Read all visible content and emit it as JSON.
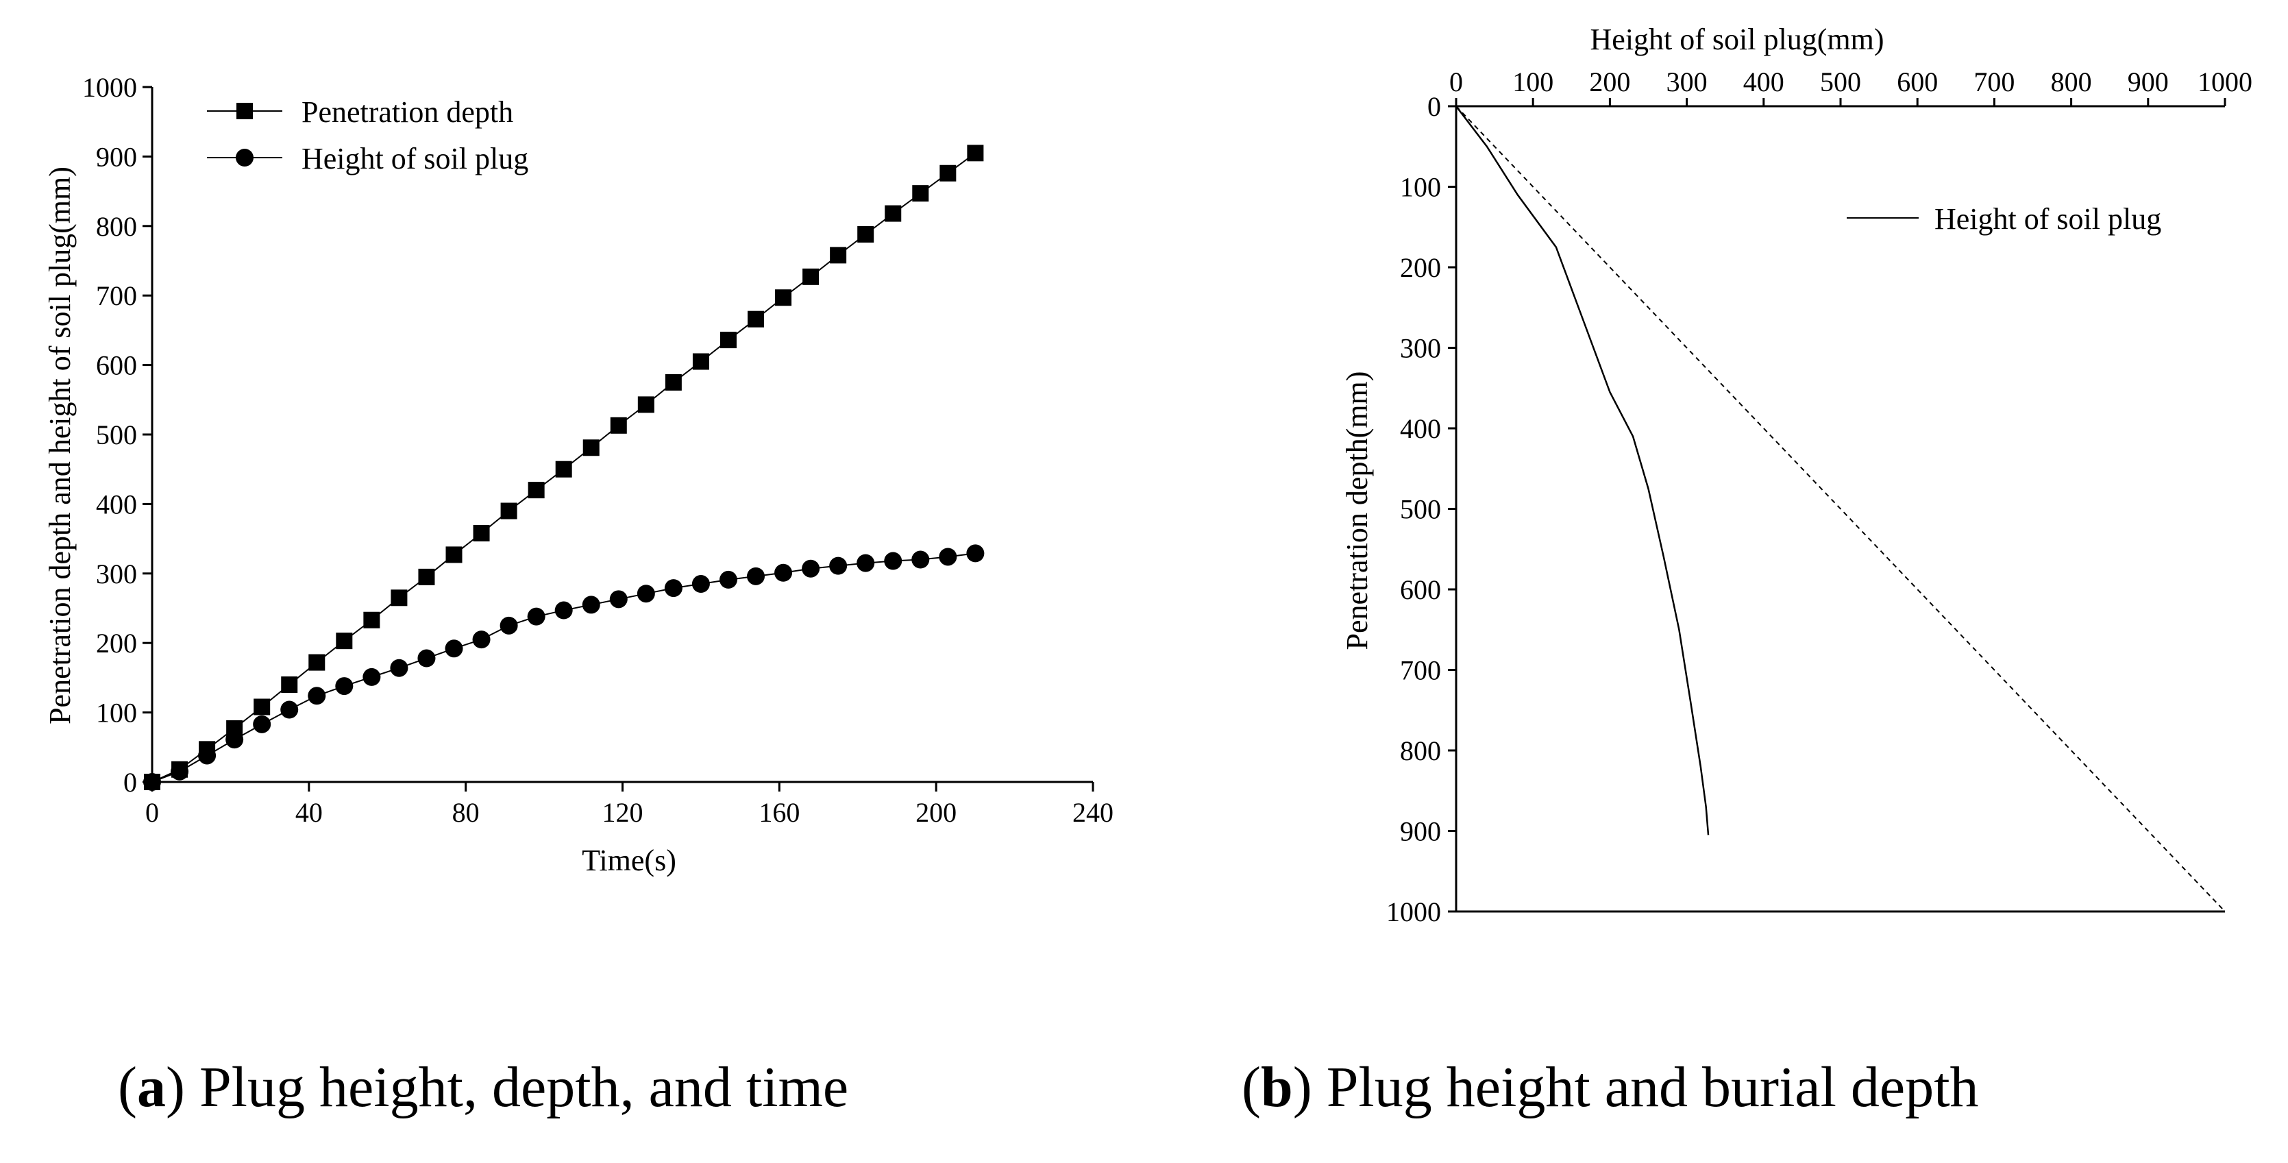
{
  "colors": {
    "ink": "#000000",
    "background": "#ffffff"
  },
  "captions": {
    "a": {
      "letter": "a",
      "text": "Plug height, depth, and time"
    },
    "b": {
      "letter": "b",
      "text": "Plug height and burial depth"
    }
  },
  "chart_data": [
    {
      "id": "a",
      "type": "line",
      "title": "",
      "xlabel": "Time(s)",
      "ylabel": "Penetration depth and height of soil plug(mm)",
      "xlim": [
        0,
        240
      ],
      "ylim": [
        0,
        1000
      ],
      "xticks": [
        0,
        40,
        80,
        120,
        160,
        200,
        240
      ],
      "yticks": [
        0,
        100,
        200,
        300,
        400,
        500,
        600,
        700,
        800,
        900,
        1000
      ],
      "legend_position": "top-left",
      "grid": false,
      "series": [
        {
          "name": "Penetration depth",
          "marker": "square",
          "x": [
            0,
            7,
            14,
            21,
            28,
            35,
            42,
            49,
            56,
            63,
            70,
            77,
            84,
            91,
            98,
            105,
            112,
            119,
            126,
            133,
            140,
            147,
            154,
            161,
            168,
            175,
            182,
            189,
            196,
            203,
            210
          ],
          "values": [
            0,
            18,
            47,
            77,
            108,
            140,
            172,
            203,
            233,
            265,
            295,
            327,
            358,
            390,
            420,
            450,
            481,
            513,
            543,
            575,
            605,
            636,
            666,
            697,
            727,
            758,
            788,
            818,
            847,
            876,
            905
          ]
        },
        {
          "name": "Height of soil plug",
          "marker": "circle",
          "x": [
            0,
            7,
            14,
            21,
            28,
            35,
            42,
            49,
            56,
            63,
            70,
            77,
            84,
            91,
            98,
            105,
            112,
            119,
            126,
            133,
            140,
            147,
            154,
            161,
            168,
            175,
            182,
            189,
            196,
            203,
            210
          ],
          "values": [
            0,
            15,
            38,
            61,
            83,
            104,
            124,
            138,
            151,
            164,
            178,
            192,
            205,
            225,
            238,
            247,
            255,
            263,
            271,
            279,
            285,
            291,
            296,
            301,
            307,
            311,
            315,
            318,
            320,
            324,
            329
          ]
        }
      ]
    },
    {
      "id": "b",
      "type": "line",
      "title": "",
      "xlabel": "Height of soil plug(mm)",
      "ylabel": "Penetration depth(mm)",
      "xlim": [
        0,
        1000
      ],
      "ylim": [
        0,
        1000
      ],
      "y_inverted": true,
      "x_axis_position": "top",
      "xticks": [
        0,
        100,
        200,
        300,
        400,
        500,
        600,
        700,
        800,
        900,
        1000
      ],
      "yticks": [
        0,
        100,
        200,
        300,
        400,
        500,
        600,
        700,
        800,
        900,
        1000
      ],
      "legend_position": "top-right",
      "grid": false,
      "series": [
        {
          "name": "Height of soil plug",
          "style": "solid",
          "x": [
            0,
            40,
            80,
            130,
            165,
            200,
            230,
            250,
            270,
            290,
            305,
            318,
            325,
            328
          ],
          "values": [
            0,
            50,
            110,
            175,
            265,
            355,
            410,
            475,
            560,
            650,
            740,
            820,
            870,
            905
          ]
        },
        {
          "name": "",
          "style": "dashed",
          "x": [
            0,
            1000
          ],
          "values": [
            0,
            1000
          ]
        }
      ]
    }
  ]
}
